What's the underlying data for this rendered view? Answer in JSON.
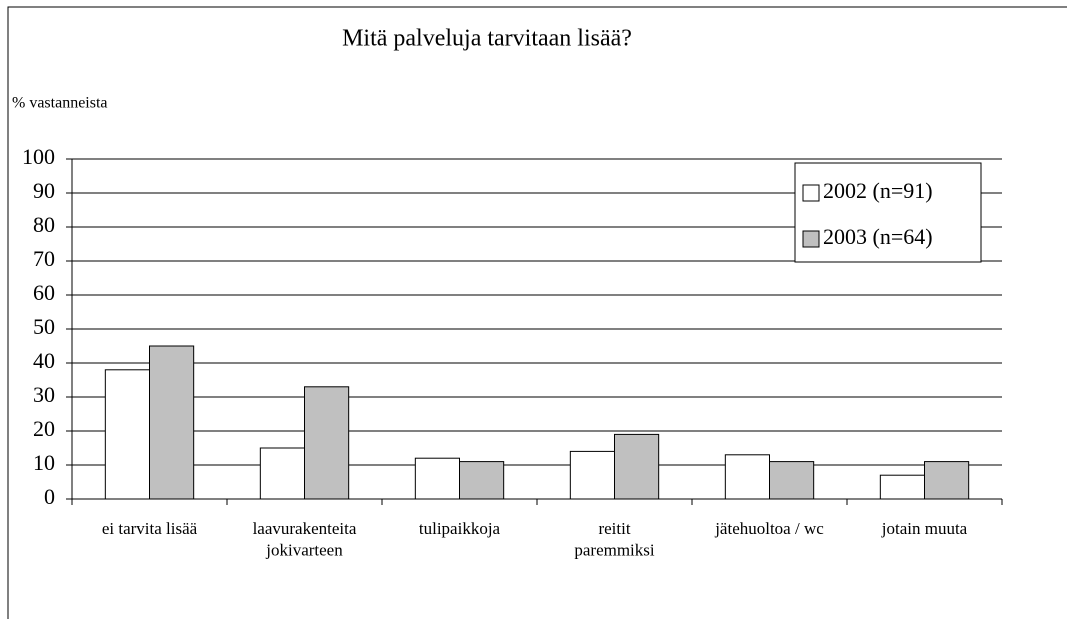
{
  "chart_data": {
    "type": "bar",
    "title": "Mitä palveluja tarvitaan lisää?",
    "y_label": "% vastanneista",
    "categories": [
      "ei tarvita lisää",
      "laavurakenteita\njokivarteen",
      "tulipaikkoja",
      "reitit\nparemmiksi",
      "jätehuoltoa / wc",
      "jotain muuta"
    ],
    "series": [
      {
        "name": "2002 (n=91)",
        "color": "#ffffff",
        "values": [
          38,
          15,
          12,
          14,
          13,
          7
        ]
      },
      {
        "name": "2003 (n=64)",
        "color": "#c0c0c0",
        "values": [
          45,
          33,
          11,
          19,
          11,
          11
        ]
      }
    ],
    "ylim": [
      0,
      100
    ],
    "yticks": [
      0,
      10,
      20,
      30,
      40,
      50,
      60,
      70,
      80,
      90,
      100
    ],
    "grid": true,
    "legend": "top-right"
  }
}
